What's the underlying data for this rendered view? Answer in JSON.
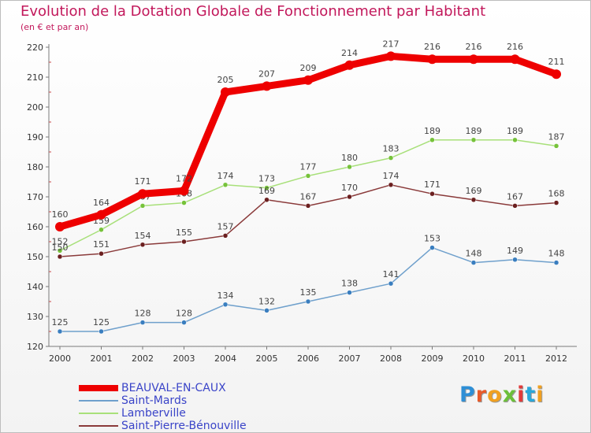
{
  "title": "Evolution de la Dotation Globale de Fonctionnement par Habitant",
  "subtitle": "(en € et par an)",
  "logo_text": "Proxiti",
  "chart_data": {
    "type": "line",
    "title": "Evolution de la Dotation Globale de Fonctionnement par Habitant",
    "subtitle": "(en € et par an)",
    "xlabel": "",
    "ylabel": "",
    "ylim": [
      120,
      220
    ],
    "yticks": [
      120,
      130,
      140,
      150,
      160,
      170,
      180,
      190,
      200,
      210,
      220
    ],
    "grid": false,
    "legend_position": "bottom-left",
    "x": [
      "2000",
      "2001",
      "2002",
      "2003",
      "2004",
      "2005",
      "2006",
      "2007",
      "2008",
      "2009",
      "2010",
      "2011",
      "2012"
    ],
    "series": [
      {
        "name": "BEAUVAL-EN-CAUX",
        "color": "#ee0000",
        "marker": "#ee0000",
        "emphasis": true,
        "values": [
          160,
          164,
          171,
          172,
          205,
          207,
          209,
          214,
          217,
          216,
          216,
          216,
          211
        ]
      },
      {
        "name": "Saint-Mards",
        "color": "#6fa0cc",
        "marker": "#3a7ebf",
        "values": [
          125,
          125,
          128,
          128,
          134,
          132,
          135,
          138,
          141,
          153,
          148,
          149,
          148
        ]
      },
      {
        "name": "Lamberville",
        "color": "#a8e07a",
        "marker": "#76c23a",
        "values": [
          152,
          159,
          167,
          168,
          174,
          173,
          177,
          180,
          183,
          189,
          189,
          189,
          187
        ]
      },
      {
        "name": "Saint-Pierre-Bénouville",
        "color": "#8a3a3a",
        "marker": "#6b1f1f",
        "values": [
          150,
          151,
          154,
          155,
          157,
          169,
          167,
          170,
          174,
          171,
          169,
          167,
          168
        ]
      }
    ]
  }
}
